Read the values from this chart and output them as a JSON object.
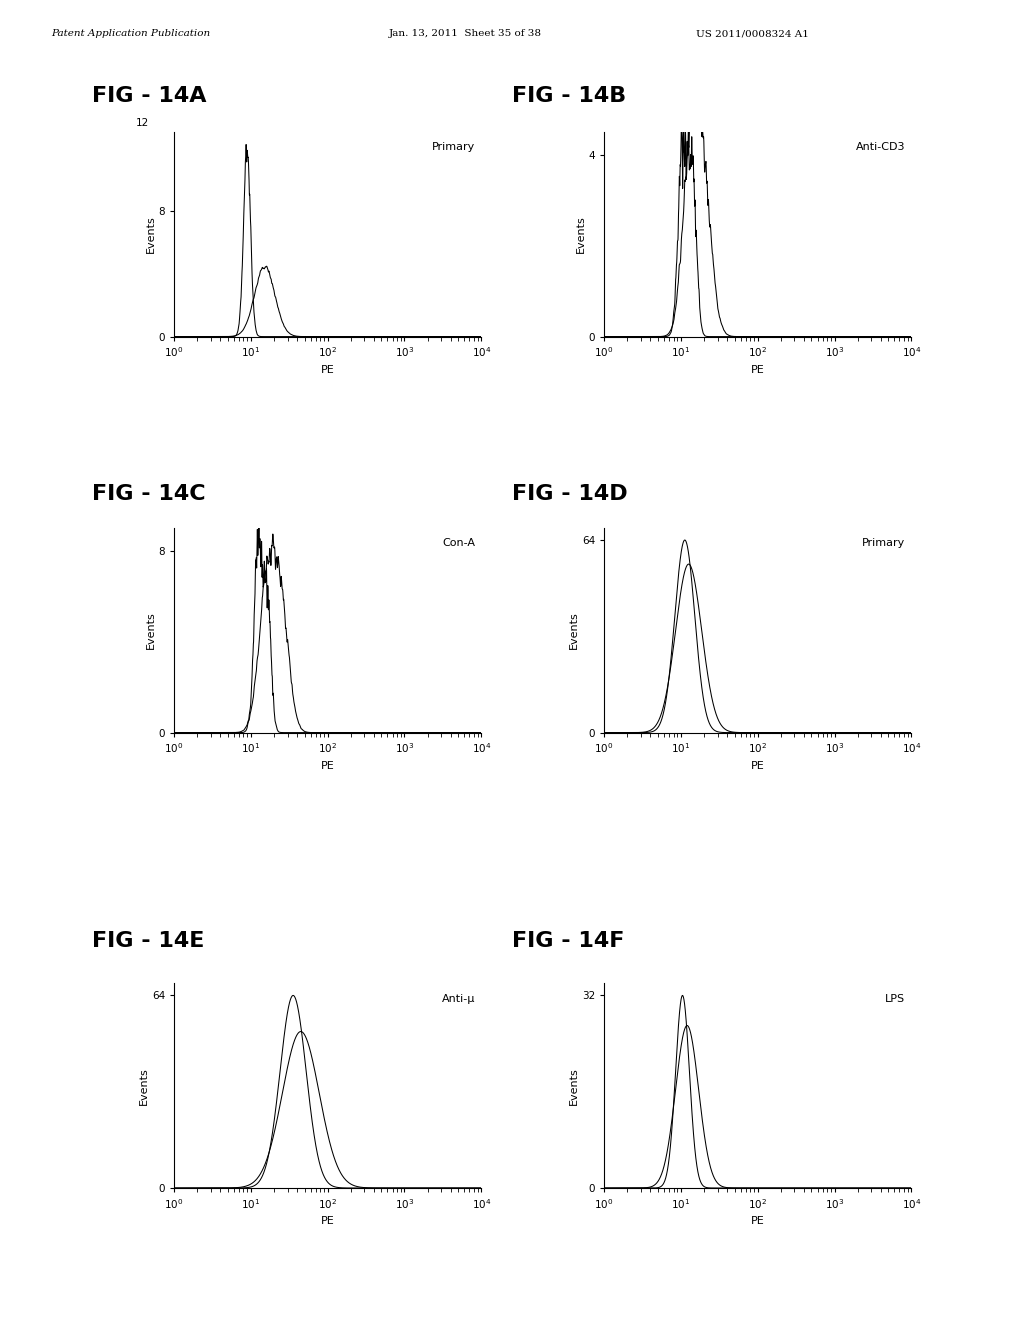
{
  "header_left": "Patent Application Publication",
  "header_center": "Jan. 13, 2011  Sheet 35 of 38",
  "header_right": "US 2011/0008324 A1",
  "panels": [
    {
      "id": "A",
      "title": "FIG - 14A",
      "subtitle": "Primary",
      "ylabel": "Events",
      "xlabel": "PE",
      "ymax": 13,
      "yticks": [
        0,
        8
      ],
      "ytick_labels": [
        "0",
        "8"
      ],
      "peak_above": "12"
    },
    {
      "id": "B",
      "title": "FIG - 14B",
      "subtitle": "Anti-CD3",
      "ylabel": "Events",
      "xlabel": "PE",
      "ymax": 4.5,
      "yticks": [
        0,
        4
      ],
      "ytick_labels": [
        "0",
        "4"
      ],
      "peak_above": null
    },
    {
      "id": "C",
      "title": "FIG - 14C",
      "subtitle": "Con-A",
      "ylabel": "Events",
      "xlabel": "PE",
      "ymax": 9,
      "yticks": [
        0,
        8
      ],
      "ytick_labels": [
        "0",
        "8"
      ],
      "peak_above": null
    },
    {
      "id": "D",
      "title": "FIG - 14D",
      "subtitle": "Primary",
      "ylabel": "Events",
      "xlabel": "PE",
      "ymax": 68,
      "yticks": [
        0,
        64
      ],
      "ytick_labels": [
        "0",
        "64"
      ],
      "peak_above": null
    },
    {
      "id": "E",
      "title": "FIG - 14E",
      "subtitle": "Anti-μ",
      "ylabel": "Events",
      "xlabel": "PE",
      "ymax": 68,
      "yticks": [
        0,
        64
      ],
      "ytick_labels": [
        "0",
        "64"
      ],
      "peak_above": null
    },
    {
      "id": "F",
      "title": "FIG - 14F",
      "subtitle": "LPS",
      "ylabel": "Events",
      "xlabel": "PE",
      "ymax": 34,
      "yticks": [
        0,
        32
      ],
      "ytick_labels": [
        "0",
        "32"
      ],
      "peak_above": null
    }
  ]
}
